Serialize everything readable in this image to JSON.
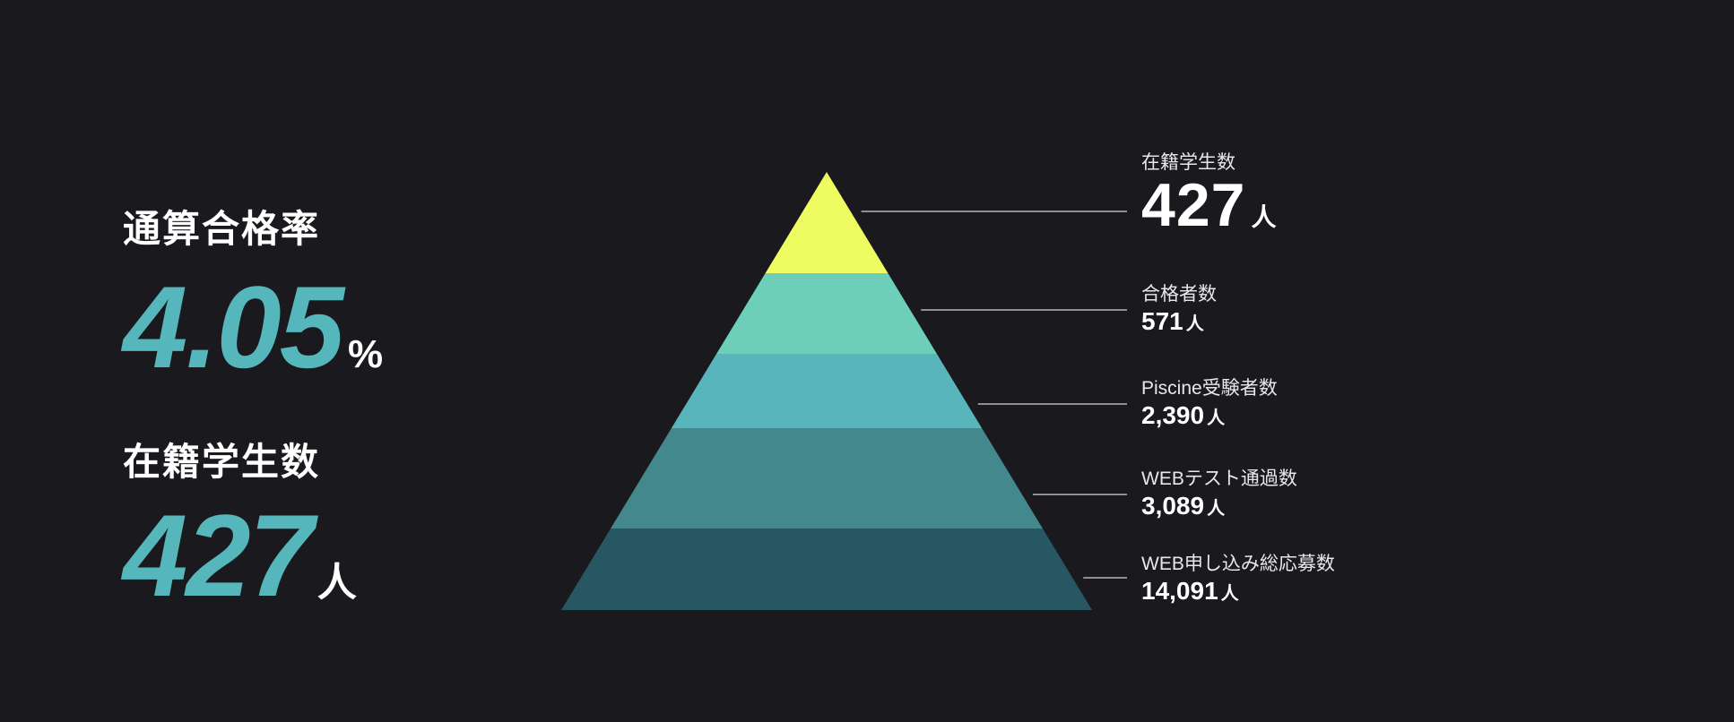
{
  "summary": {
    "rate_label": "通算合格率",
    "rate_value": "4.05",
    "rate_unit": "%",
    "students_label": "在籍学生数",
    "students_value": "427",
    "students_unit": "人"
  },
  "chart_data": {
    "type": "pyramid",
    "unit": "人",
    "levels": [
      {
        "label": "在籍学生数",
        "value": 427,
        "display": "427",
        "color": "#eefc62"
      },
      {
        "label": "合格者数",
        "value": 571,
        "display": "571",
        "color": "#6dcfba"
      },
      {
        "label": "Piscine受験者数",
        "value": 2390,
        "display": "2,390",
        "color": "#57b5bb"
      },
      {
        "label": "WEBテスト通過数",
        "value": 3089,
        "display": "3,089",
        "color": "#43888d"
      },
      {
        "label": "WEB申し込み総応募数",
        "value": 14091,
        "display": "14,091",
        "color": "#275762"
      }
    ]
  }
}
